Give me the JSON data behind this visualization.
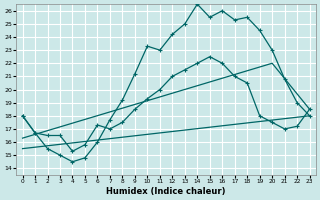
{
  "xlabel": "Humidex (Indice chaleur)",
  "bg_color": "#cce8e8",
  "grid_color": "#ffffff",
  "line_color": "#006666",
  "xlim": [
    -0.5,
    23.5
  ],
  "ylim": [
    13.5,
    26.5
  ],
  "xticks": [
    0,
    1,
    2,
    3,
    4,
    5,
    6,
    7,
    8,
    9,
    10,
    11,
    12,
    13,
    14,
    15,
    16,
    17,
    18,
    19,
    20,
    21,
    22,
    23
  ],
  "yticks": [
    14,
    15,
    16,
    17,
    18,
    19,
    20,
    21,
    22,
    23,
    24,
    25,
    26
  ],
  "line1_x": [
    0,
    1,
    2,
    3,
    4,
    5,
    6,
    7,
    8,
    9,
    10,
    11,
    12,
    13,
    14,
    15,
    16,
    17,
    18,
    19,
    20,
    21,
    22,
    23
  ],
  "line1_y": [
    18.0,
    16.7,
    15.5,
    15.0,
    14.5,
    14.8,
    16.0,
    17.7,
    19.2,
    21.2,
    23.3,
    23.0,
    24.2,
    25.0,
    26.5,
    25.5,
    26.0,
    25.3,
    25.5,
    24.5,
    23.0,
    20.8,
    19.0,
    18.0
  ],
  "line2_x": [
    0,
    1,
    2,
    3,
    4,
    5,
    6,
    7,
    8,
    9,
    10,
    11,
    12,
    13,
    14,
    15,
    16,
    17,
    18,
    19,
    20,
    21,
    22,
    23
  ],
  "line2_y": [
    18.0,
    16.7,
    16.5,
    16.5,
    15.3,
    15.8,
    17.3,
    17.0,
    17.5,
    18.5,
    19.3,
    20.0,
    21.0,
    21.5,
    22.0,
    22.5,
    22.0,
    21.0,
    20.5,
    18.0,
    17.5,
    17.0,
    17.2,
    18.5
  ],
  "line3_x": [
    0,
    23
  ],
  "line3_y": [
    15.5,
    18.0
  ],
  "line4_x": [
    0,
    20,
    23
  ],
  "line4_y": [
    16.3,
    22.0,
    18.5
  ]
}
